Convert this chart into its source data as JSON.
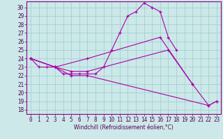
{
  "xlabel": "Windchill (Refroidissement éolien,°C)",
  "background_color": "#cce8e8",
  "line_color": "#aa00aa",
  "grid_color": "#99cccc",
  "xlim": [
    -0.5,
    23.5
  ],
  "ylim": [
    17.5,
    30.7
  ],
  "yticks": [
    18,
    19,
    20,
    21,
    22,
    23,
    24,
    25,
    26,
    27,
    28,
    29,
    30
  ],
  "xticks": [
    0,
    1,
    2,
    3,
    4,
    5,
    6,
    7,
    8,
    9,
    10,
    11,
    12,
    13,
    14,
    15,
    16,
    17,
    18,
    19,
    20,
    21,
    22,
    23
  ],
  "s1_x": [
    0,
    1,
    2,
    3,
    4,
    5,
    6,
    7,
    8,
    9,
    10,
    11,
    12,
    13,
    14,
    15,
    16,
    17,
    18
  ],
  "s1_y": [
    24.0,
    23.0,
    23.0,
    23.0,
    22.2,
    22.2,
    22.2,
    22.2,
    22.2,
    23.0,
    25.0,
    27.0,
    29.0,
    29.5,
    30.5,
    30.0,
    29.5,
    26.5,
    25.0
  ],
  "s2_x": [
    0,
    3,
    7,
    16,
    20
  ],
  "s2_y": [
    24.0,
    23.0,
    24.0,
    26.5,
    21.0
  ],
  "s3_x": [
    0,
    3,
    5,
    7,
    17,
    20,
    22,
    23
  ],
  "s3_y": [
    24.0,
    23.0,
    22.5,
    22.5,
    25.0,
    21.0,
    18.5,
    19.0
  ],
  "s4_x": [
    0,
    3,
    5,
    7,
    22,
    23
  ],
  "s4_y": [
    24.0,
    23.0,
    22.0,
    22.0,
    18.5,
    19.0
  ]
}
